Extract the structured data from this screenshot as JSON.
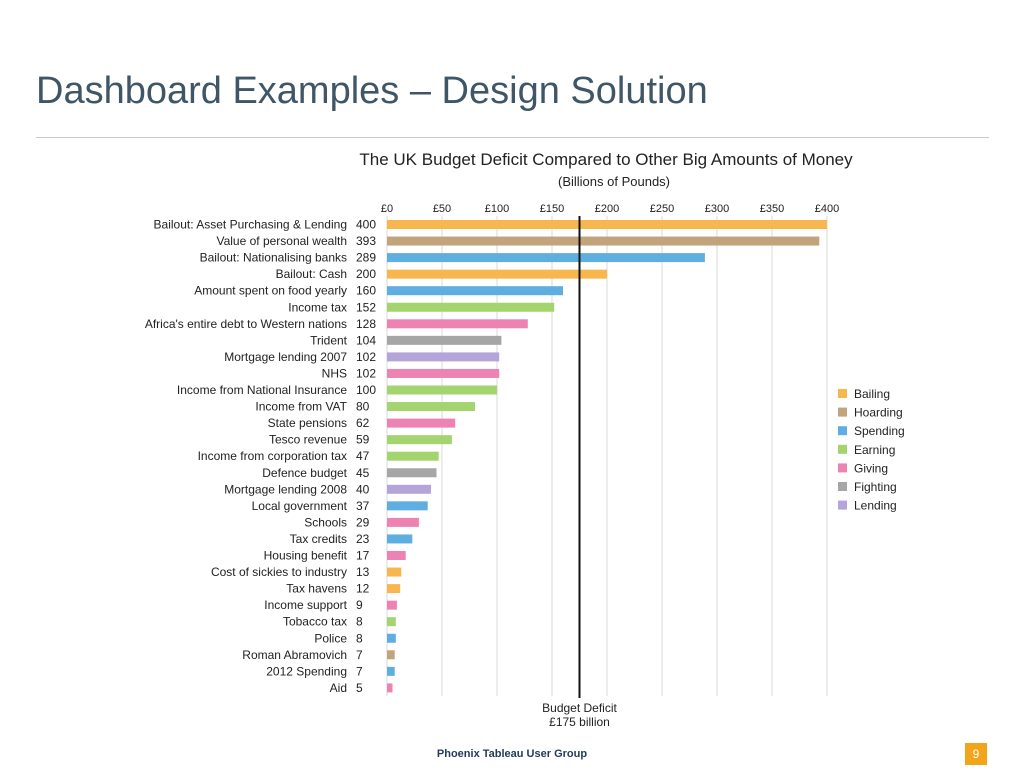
{
  "slide": {
    "title": "Dashboard Examples – Design Solution",
    "footer": "Phoenix Tableau User Group",
    "page_number": "9"
  },
  "chart_data": {
    "type": "bar",
    "orientation": "horizontal",
    "title": "The UK Budget Deficit Compared to Other Big Amounts of Money",
    "subtitle": "(Billions of Pounds)",
    "xlabel": "",
    "ylabel": "",
    "xlim": [
      0,
      400
    ],
    "x_ticks": [
      "£0",
      "£50",
      "£100",
      "£150",
      "£200",
      "£250",
      "£300",
      "£350",
      "£400"
    ],
    "x_tick_values": [
      0,
      50,
      100,
      150,
      200,
      250,
      300,
      350,
      400
    ],
    "grid": true,
    "legend_position": "right",
    "colors": {
      "Bailing": "#f8b74e",
      "Hoarding": "#c2a47c",
      "Spending": "#5eaee0",
      "Earning": "#a3d46e",
      "Giving": "#ec83b2",
      "Fighting": "#a6a6a6",
      "Lending": "#b4a4da"
    },
    "legend": [
      "Bailing",
      "Hoarding",
      "Spending",
      "Earning",
      "Giving",
      "Fighting",
      "Lending"
    ],
    "categories": [
      "Bailout: Asset Purchasing & Lending",
      "Value of personal wealth",
      "Bailout: Nationalising banks",
      "Bailout: Cash",
      "Amount spent on food yearly",
      "Income tax",
      "Africa's entire debt to Western nations",
      "Trident",
      "Mortgage lending 2007",
      "NHS",
      "Income from National Insurance",
      "Income from VAT",
      "State pensions",
      "Tesco revenue",
      "Income from corporation tax",
      "Defence budget",
      "Mortgage lending 2008",
      "Local government",
      "Schools",
      "Tax credits",
      "Housing benefit",
      "Cost of sickies to industry",
      "Tax havens",
      "Income support",
      "Tobacco tax",
      "Police",
      "Roman Abramovich",
      "2012 Spending",
      "Aid"
    ],
    "values": [
      400,
      393,
      289,
      200,
      160,
      152,
      128,
      104,
      102,
      102,
      100,
      80,
      62,
      59,
      47,
      45,
      40,
      37,
      29,
      23,
      17,
      13,
      12,
      9,
      8,
      8,
      7,
      7,
      5
    ],
    "value_labels": [
      "400",
      "393",
      "289",
      "200",
      "160",
      "152",
      "128",
      "104",
      "102",
      "102",
      "100",
      "80",
      "62",
      "59",
      "47",
      "45",
      "40",
      "37",
      "29",
      "23",
      "17",
      "13",
      "12",
      "9",
      "8",
      "8",
      "7",
      "7",
      "5"
    ],
    "groups": [
      "Bailing",
      "Hoarding",
      "Spending",
      "Bailing",
      "Spending",
      "Earning",
      "Giving",
      "Fighting",
      "Lending",
      "Giving",
      "Earning",
      "Earning",
      "Giving",
      "Earning",
      "Earning",
      "Fighting",
      "Lending",
      "Spending",
      "Giving",
      "Spending",
      "Giving",
      "Bailing",
      "Bailing",
      "Giving",
      "Earning",
      "Spending",
      "Hoarding",
      "Spending",
      "Giving"
    ],
    "reference_line": {
      "value": 175,
      "label_line1": "Budget Deficit",
      "label_line2": "£175 billion"
    }
  }
}
